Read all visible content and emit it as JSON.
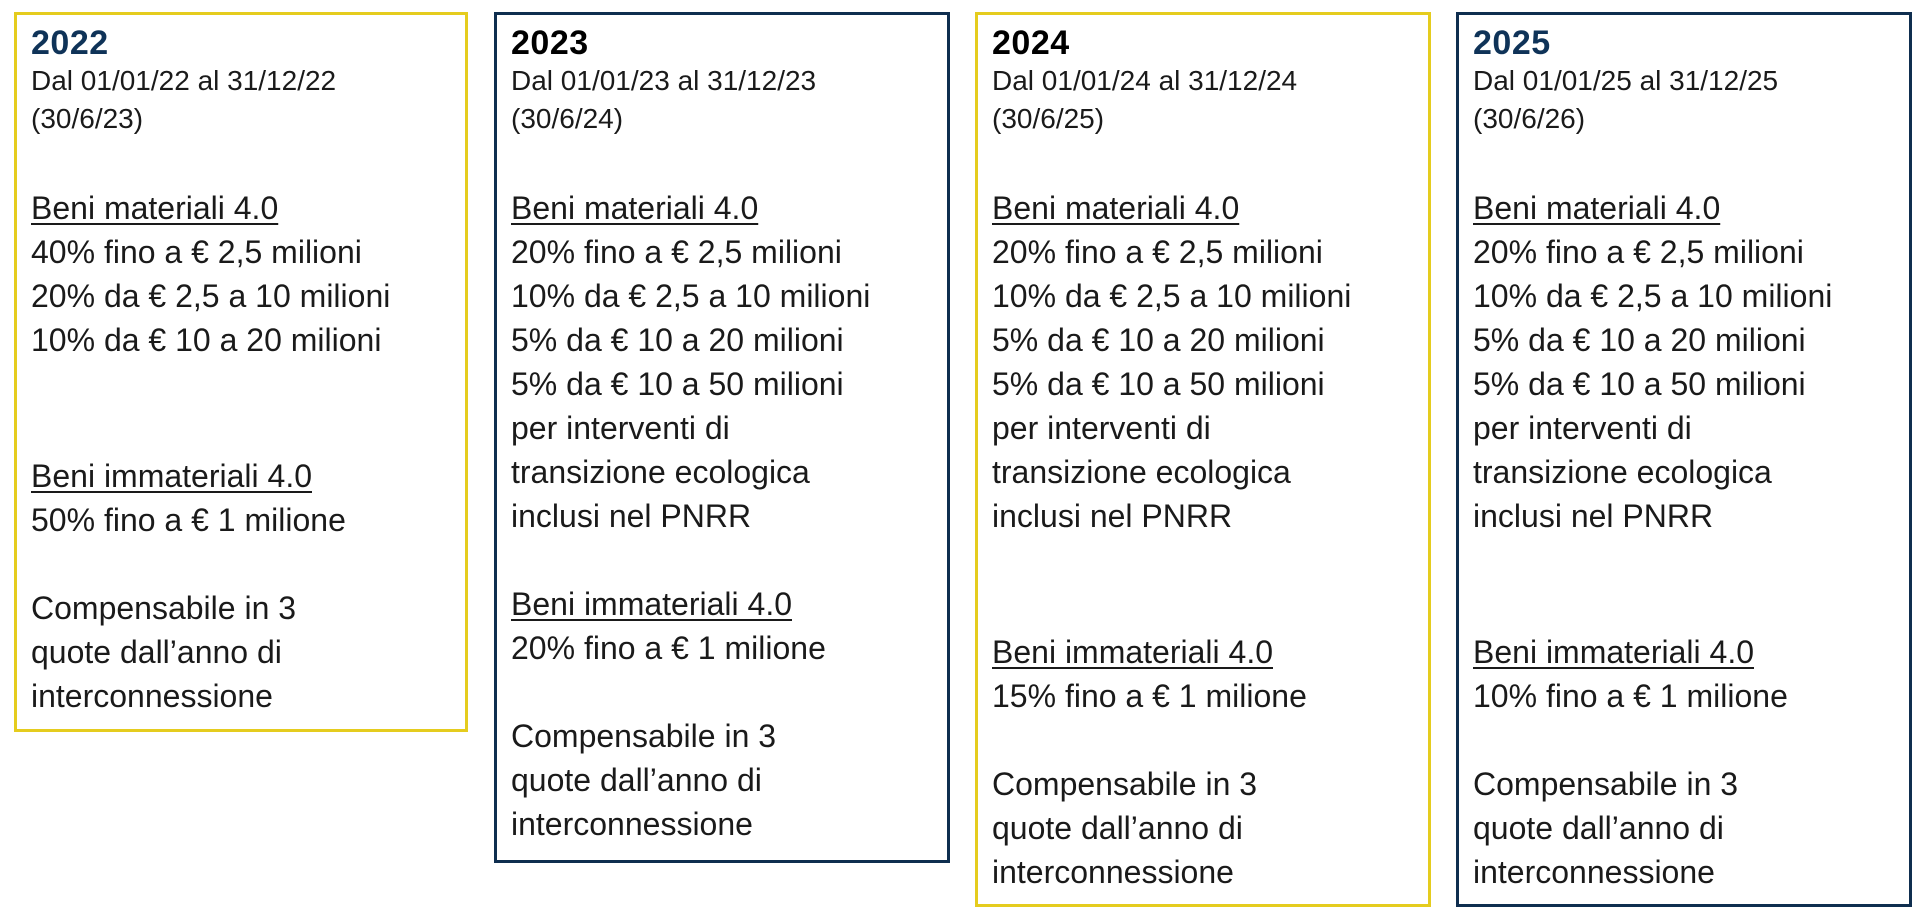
{
  "cards": [
    {
      "year": "2022",
      "period": "Dal 01/01/22 al 31/12/22",
      "deadline": "(30/6/23)",
      "tangible_title": "Beni materiali 4.0",
      "tangible_lines": [
        "40% fino a € 2,5 milioni",
        "20% da € 2,5 a 10 milioni",
        "10% da € 10 a 20 milioni"
      ],
      "intangible_title": "Beni immateriali 4.0",
      "intangible_line": "50% fino a € 1 milione",
      "compensation_lines": [
        "Compensabile in 3",
        "quote dall’anno di",
        "interconnessione"
      ],
      "border_color": "#e5cc1e"
    },
    {
      "year": "2023",
      "period": "Dal 01/01/23 al 31/12/23",
      "deadline": "(30/6/24)",
      "tangible_title": "Beni materiali 4.0",
      "tangible_lines": [
        "20% fino a € 2,5 milioni",
        "10% da € 2,5 a 10 milioni",
        "5% da € 10 a 20 milioni",
        "5% da € 10 a 50 milioni",
        "per interventi di",
        "transizione ecologica",
        "inclusi nel PNRR"
      ],
      "intangible_title": "Beni immateriali 4.0",
      "intangible_line": "20% fino a € 1 milione",
      "compensation_lines": [
        "Compensabile in 3",
        "quote dall’anno di",
        "interconnessione"
      ],
      "border_color": "#0f2e4f"
    },
    {
      "year": "2024",
      "period": "Dal 01/01/24 al 31/12/24",
      "deadline": "(30/6/25)",
      "tangible_title": "Beni materiali 4.0",
      "tangible_lines": [
        "20% fino a € 2,5 milioni",
        "10% da € 2,5 a 10 milioni",
        "5% da € 10 a 20 milioni",
        "5% da € 10 a 50 milioni",
        "per interventi di",
        "transizione ecologica",
        "inclusi nel PNRR"
      ],
      "intangible_title": "Beni immateriali 4.0",
      "intangible_line": "15% fino a € 1 milione",
      "compensation_lines": [
        "Compensabile in 3",
        "quote dall’anno di",
        "interconnessione"
      ],
      "border_color": "#e5cc1e"
    },
    {
      "year": "2025",
      "period": "Dal 01/01/25 al 31/12/25",
      "deadline": "(30/6/26)",
      "tangible_title": "Beni materiali 4.0",
      "tangible_lines": [
        "20% fino a € 2,5 milioni",
        "10% da € 2,5 a 10 milioni",
        "5% da € 10 a 20 milioni",
        "5% da € 10 a 50 milioni",
        "per interventi di",
        "transizione ecologica",
        "inclusi nel PNRR"
      ],
      "intangible_title": "Beni immateriali 4.0",
      "intangible_line": "10% fino a € 1 milione",
      "compensation_lines": [
        "Compensabile in 3",
        "quote dall’anno di",
        "interconnessione"
      ],
      "border_color": "#0f2e4f"
    }
  ],
  "colors": {
    "yellow_border": "#e5cc1e",
    "navy_border": "#0f2e4f",
    "navy_year": "#0f3358",
    "black_year": "#000000",
    "text": "#1a1a1a"
  }
}
